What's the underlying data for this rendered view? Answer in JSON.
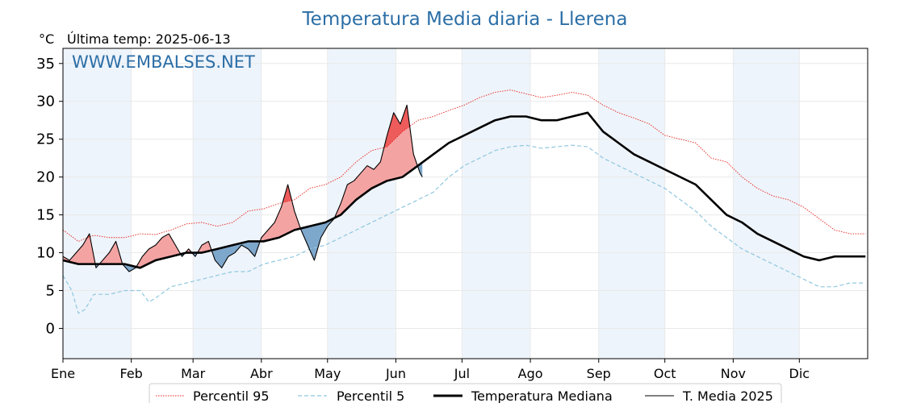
{
  "chart_data": {
    "type": "line",
    "title": "Temperatura Media diaria - Llerena",
    "unit": "°C",
    "subtitle": "Última temp: 2025-06-13",
    "watermark": "WWW.EMBALSES.NET",
    "xlabel": "",
    "ylabel": "°C",
    "ylim": [
      -4,
      37
    ],
    "yticks": [
      0,
      5,
      10,
      15,
      20,
      25,
      30,
      35
    ],
    "months": [
      "Ene",
      "Feb",
      "Mar",
      "Abr",
      "May",
      "Jun",
      "Jul",
      "Ago",
      "Sep",
      "Oct",
      "Nov",
      "Dic"
    ],
    "month_start_doy": [
      1,
      32,
      60,
      91,
      121,
      152,
      182,
      213,
      244,
      274,
      305,
      335
    ],
    "grid": true,
    "legend_position": "bottom-center",
    "colors": {
      "p95": "#e8221b",
      "p5": "#8ec7e0",
      "median": "#000000",
      "current": "#000000",
      "above_median_fill": "#f4a3a3",
      "above_p95_fill": "#ee5b5b",
      "below_median_fill": "#7ea7cc",
      "title": "#2b6ea6",
      "shade": "#eef4fb"
    },
    "series": [
      {
        "name": "Percentil 95",
        "style": "dotted-red",
        "points": [
          [
            1,
            13.0
          ],
          [
            8,
            11.5
          ],
          [
            15,
            12.3
          ],
          [
            22,
            12.0
          ],
          [
            29,
            12.0
          ],
          [
            36,
            12.5
          ],
          [
            43,
            12.4
          ],
          [
            50,
            13.0
          ],
          [
            57,
            13.8
          ],
          [
            64,
            14.0
          ],
          [
            71,
            13.5
          ],
          [
            78,
            14.0
          ],
          [
            85,
            15.5
          ],
          [
            92,
            15.8
          ],
          [
            99,
            16.5
          ],
          [
            106,
            17.0
          ],
          [
            113,
            18.5
          ],
          [
            120,
            19.0
          ],
          [
            127,
            20.0
          ],
          [
            134,
            22.0
          ],
          [
            141,
            23.5
          ],
          [
            148,
            24.0
          ],
          [
            155,
            26.0
          ],
          [
            162,
            27.5
          ],
          [
            169,
            28.0
          ],
          [
            176,
            28.8
          ],
          [
            183,
            29.5
          ],
          [
            190,
            30.5
          ],
          [
            197,
            31.2
          ],
          [
            204,
            31.5
          ],
          [
            211,
            31.0
          ],
          [
            218,
            30.5
          ],
          [
            225,
            30.8
          ],
          [
            232,
            31.2
          ],
          [
            239,
            30.8
          ],
          [
            246,
            29.5
          ],
          [
            253,
            28.5
          ],
          [
            260,
            27.8
          ],
          [
            267,
            27.0
          ],
          [
            274,
            25.5
          ],
          [
            281,
            25.0
          ],
          [
            288,
            24.5
          ],
          [
            295,
            22.5
          ],
          [
            302,
            22.0
          ],
          [
            309,
            20.0
          ],
          [
            316,
            18.5
          ],
          [
            323,
            17.5
          ],
          [
            330,
            17.0
          ],
          [
            337,
            16.0
          ],
          [
            344,
            14.5
          ],
          [
            351,
            13.0
          ],
          [
            358,
            12.5
          ],
          [
            365,
            12.5
          ]
        ]
      },
      {
        "name": "Percentil 5",
        "style": "dashed-lightblue",
        "points": [
          [
            1,
            7.0
          ],
          [
            5,
            5.0
          ],
          [
            8,
            2.0
          ],
          [
            11,
            2.5
          ],
          [
            15,
            4.5
          ],
          [
            22,
            4.5
          ],
          [
            29,
            5.0
          ],
          [
            36,
            5.0
          ],
          [
            40,
            3.5
          ],
          [
            43,
            4.0
          ],
          [
            50,
            5.5
          ],
          [
            57,
            6.0
          ],
          [
            64,
            6.5
          ],
          [
            71,
            7.0
          ],
          [
            78,
            7.5
          ],
          [
            85,
            7.5
          ],
          [
            92,
            8.5
          ],
          [
            99,
            9.0
          ],
          [
            106,
            9.5
          ],
          [
            113,
            10.5
          ],
          [
            120,
            11.0
          ],
          [
            127,
            12.0
          ],
          [
            134,
            13.0
          ],
          [
            141,
            14.0
          ],
          [
            148,
            15.0
          ],
          [
            155,
            16.0
          ],
          [
            162,
            17.0
          ],
          [
            169,
            18.0
          ],
          [
            176,
            20.0
          ],
          [
            183,
            21.5
          ],
          [
            190,
            22.5
          ],
          [
            197,
            23.5
          ],
          [
            204,
            24.0
          ],
          [
            211,
            24.2
          ],
          [
            218,
            23.8
          ],
          [
            225,
            24.0
          ],
          [
            232,
            24.2
          ],
          [
            239,
            24.0
          ],
          [
            246,
            22.5
          ],
          [
            253,
            21.5
          ],
          [
            260,
            20.5
          ],
          [
            267,
            19.5
          ],
          [
            274,
            18.5
          ],
          [
            281,
            17.0
          ],
          [
            288,
            15.5
          ],
          [
            295,
            13.5
          ],
          [
            302,
            12.0
          ],
          [
            309,
            10.5
          ],
          [
            316,
            9.5
          ],
          [
            323,
            8.5
          ],
          [
            330,
            7.5
          ],
          [
            337,
            6.5
          ],
          [
            344,
            5.5
          ],
          [
            351,
            5.5
          ],
          [
            358,
            6.0
          ],
          [
            365,
            6.0
          ]
        ]
      },
      {
        "name": "Temperatura Mediana",
        "style": "thick-black",
        "points": [
          [
            1,
            9.0
          ],
          [
            8,
            8.5
          ],
          [
            15,
            8.5
          ],
          [
            22,
            8.5
          ],
          [
            29,
            8.5
          ],
          [
            36,
            8.0
          ],
          [
            43,
            9.0
          ],
          [
            50,
            9.5
          ],
          [
            57,
            10.0
          ],
          [
            64,
            10.0
          ],
          [
            71,
            10.5
          ],
          [
            78,
            11.0
          ],
          [
            85,
            11.5
          ],
          [
            92,
            11.5
          ],
          [
            99,
            12.0
          ],
          [
            106,
            13.0
          ],
          [
            113,
            13.5
          ],
          [
            120,
            14.0
          ],
          [
            127,
            15.0
          ],
          [
            134,
            17.0
          ],
          [
            141,
            18.5
          ],
          [
            148,
            19.5
          ],
          [
            155,
            20.0
          ],
          [
            162,
            21.5
          ],
          [
            169,
            23.0
          ],
          [
            176,
            24.5
          ],
          [
            183,
            25.5
          ],
          [
            190,
            26.5
          ],
          [
            197,
            27.5
          ],
          [
            204,
            28.0
          ],
          [
            211,
            28.0
          ],
          [
            218,
            27.5
          ],
          [
            225,
            27.5
          ],
          [
            232,
            28.0
          ],
          [
            239,
            28.5
          ],
          [
            246,
            26.0
          ],
          [
            253,
            24.5
          ],
          [
            260,
            23.0
          ],
          [
            267,
            22.0
          ],
          [
            274,
            21.0
          ],
          [
            281,
            20.0
          ],
          [
            288,
            19.0
          ],
          [
            295,
            17.0
          ],
          [
            302,
            15.0
          ],
          [
            309,
            14.0
          ],
          [
            316,
            12.5
          ],
          [
            323,
            11.5
          ],
          [
            330,
            10.5
          ],
          [
            337,
            9.5
          ],
          [
            344,
            9.0
          ],
          [
            351,
            9.5
          ],
          [
            358,
            9.5
          ],
          [
            365,
            9.5
          ]
        ]
      },
      {
        "name": "T. Media 2025",
        "style": "thin-black",
        "points": [
          [
            1,
            9.5
          ],
          [
            4,
            9.0
          ],
          [
            7,
            10.0
          ],
          [
            10,
            11.0
          ],
          [
            13,
            12.5
          ],
          [
            16,
            8.0
          ],
          [
            19,
            9.0
          ],
          [
            22,
            10.0
          ],
          [
            25,
            11.5
          ],
          [
            28,
            8.5
          ],
          [
            31,
            7.5
          ],
          [
            34,
            8.0
          ],
          [
            37,
            9.5
          ],
          [
            40,
            10.5
          ],
          [
            43,
            11.0
          ],
          [
            46,
            12.0
          ],
          [
            49,
            12.5
          ],
          [
            52,
            11.0
          ],
          [
            55,
            9.5
          ],
          [
            58,
            10.5
          ],
          [
            61,
            9.5
          ],
          [
            64,
            11.0
          ],
          [
            67,
            11.5
          ],
          [
            70,
            9.0
          ],
          [
            73,
            8.0
          ],
          [
            76,
            9.5
          ],
          [
            79,
            10.0
          ],
          [
            82,
            11.0
          ],
          [
            85,
            10.5
          ],
          [
            88,
            9.5
          ],
          [
            91,
            12.0
          ],
          [
            94,
            13.0
          ],
          [
            97,
            14.0
          ],
          [
            100,
            16.0
          ],
          [
            103,
            19.0
          ],
          [
            106,
            15.5
          ],
          [
            109,
            13.0
          ],
          [
            112,
            11.0
          ],
          [
            115,
            9.0
          ],
          [
            118,
            12.0
          ],
          [
            121,
            13.5
          ],
          [
            124,
            14.5
          ],
          [
            127,
            16.5
          ],
          [
            130,
            19.0
          ],
          [
            133,
            19.5
          ],
          [
            136,
            20.5
          ],
          [
            139,
            21.5
          ],
          [
            142,
            21.0
          ],
          [
            145,
            22.0
          ],
          [
            148,
            25.5
          ],
          [
            151,
            28.5
          ],
          [
            154,
            27.0
          ],
          [
            157,
            29.5
          ],
          [
            160,
            23.0
          ],
          [
            163,
            20.5
          ],
          [
            164,
            20.0
          ]
        ]
      }
    ]
  }
}
